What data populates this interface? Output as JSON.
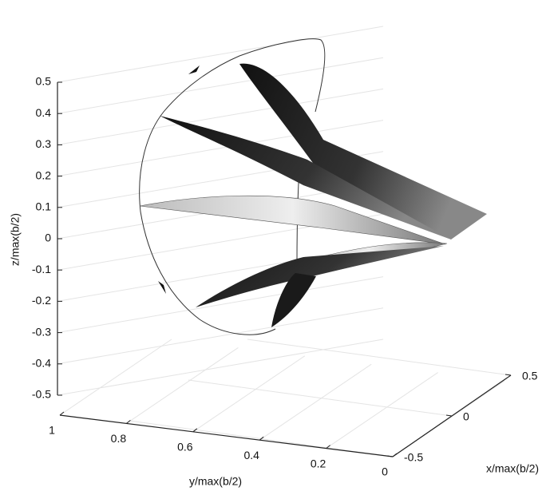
{
  "chart_data": {
    "type": "surface3d",
    "zlabel": "z/max(b/2)",
    "ylabel": "y/max(b/2)",
    "xlabel": "x/max(b/2)",
    "zlim": [
      -0.5,
      0.5
    ],
    "zticks": [
      0.5,
      0.4,
      0.3,
      0.2,
      0.1,
      0,
      -0.1,
      -0.2,
      -0.3,
      -0.4,
      -0.5
    ],
    "ylim": [
      0,
      1
    ],
    "yticks": [
      1,
      0.8,
      0.6,
      0.4,
      0.2,
      0
    ],
    "xlim": [
      -0.5,
      0.5
    ],
    "xticks": [
      -0.5,
      0,
      0.5
    ],
    "grid": true
  }
}
